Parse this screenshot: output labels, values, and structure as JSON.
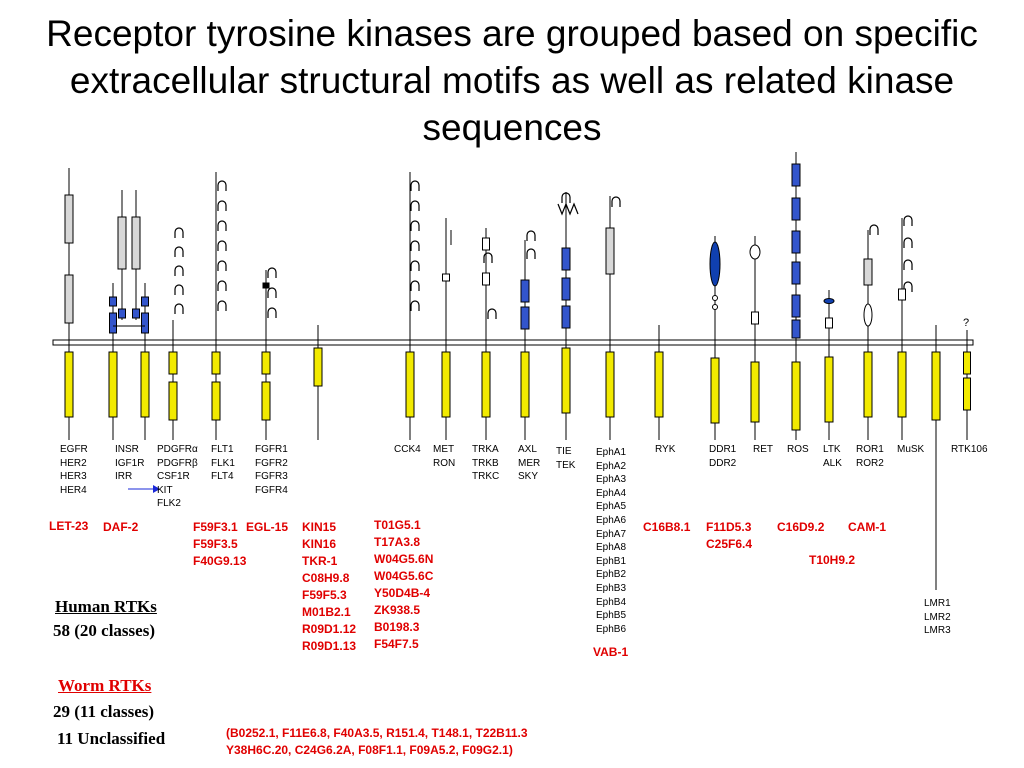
{
  "title": "Receptor tyrosine kinases are grouped based on specific extracellular structural motifs as well as related kinase sequences",
  "unknown_mark": "?",
  "human_labels": [
    {
      "id": "egfr",
      "text": "EGFR\nHER2\nHER3\nHER4"
    },
    {
      "id": "insr",
      "text": "INSR\nIGF1R\nIRR"
    },
    {
      "id": "pdgfr",
      "text": "PDGFRα\nPDGFRβ\nCSF1R\nKIT\nFLK2"
    },
    {
      "id": "flt",
      "text": "FLT1\nFLK1\nFLT4"
    },
    {
      "id": "fgfr",
      "text": "FGFR1\nFGFR2\nFGFR3\nFGFR4"
    },
    {
      "id": "cck4",
      "text": "CCK4"
    },
    {
      "id": "met",
      "text": "MET\nRON"
    },
    {
      "id": "trk",
      "text": "TRKA\nTRKB\nTRKC"
    },
    {
      "id": "axl",
      "text": "AXL\nMER\nSKY"
    },
    {
      "id": "tie",
      "text": "TIE\nTEK"
    },
    {
      "id": "eph",
      "text": "EphA1\nEphA2\nEphA3\nEphA4\nEphA5\nEphA6\nEphA7\nEphA8\nEphB1\nEphB2\nEphB3\nEphB4\nEphB5\nEphB6"
    },
    {
      "id": "ryk",
      "text": "RYK"
    },
    {
      "id": "ddr",
      "text": "DDR1\nDDR2"
    },
    {
      "id": "ret",
      "text": "RET"
    },
    {
      "id": "ros",
      "text": "ROS"
    },
    {
      "id": "ltk",
      "text": "LTK\nALK"
    },
    {
      "id": "ror",
      "text": "ROR1\nROR2"
    },
    {
      "id": "musk",
      "text": "MuSK"
    },
    {
      "id": "rtk106",
      "text": "RTK106"
    },
    {
      "id": "lmr",
      "text": "LMR1\nLMR2\nLMR3"
    }
  ],
  "worm_labels": [
    {
      "id": "let23",
      "text": "LET-23"
    },
    {
      "id": "daf2",
      "text": "DAF-2"
    },
    {
      "id": "f59f31",
      "text": "F59F3.1\nF59F3.5\nF40G9.13"
    },
    {
      "id": "egl15",
      "text": "EGL-15"
    },
    {
      "id": "kin15",
      "text": "KIN15\nKIN16\nTKR-1\nC08H9.8\nF59F5.3\nM01B2.1\nR09D1.12\nR09D1.13"
    },
    {
      "id": "t01g51",
      "text": "T01G5.1\nT17A3.8\nW04G5.6N\nW04G5.6C\nY50D4B-4\nZK938.5\nB0198.3\nF54F7.5"
    },
    {
      "id": "vab1",
      "text": "VAB-1"
    },
    {
      "id": "c16b81",
      "text": "C16B8.1"
    },
    {
      "id": "f11d53",
      "text": "F11D5.3\nC25F6.4"
    },
    {
      "id": "c16d92",
      "text": "C16D9.2"
    },
    {
      "id": "cam1",
      "text": "CAM-1"
    },
    {
      "id": "t10h92",
      "text": "T10H9.2"
    }
  ],
  "summary": {
    "human_title": "Human RTKs",
    "human_count": "58 (20 classes)",
    "worm_title": "Worm RTKs",
    "worm_count": "29 (11 classes)",
    "unclassified": "11 Unclassified"
  },
  "unclassified_list": {
    "line1": "(B0252.1, F11E6.8, F40A3.5, R151.4, T148.1, T22B11.3",
    "line2": "Y38H6C.20, C24G6.2A, F08F1.1, F09A5.2, F09G2.1)"
  },
  "colors": {
    "kinase_domain": "#f2ea00",
    "fibronectin_domain": "#3355cc",
    "cysteine_rich_domain": "#d8d8d8",
    "discoidin_domain": "#1040b0",
    "worm_text": "#e00000",
    "arrow": "#1a28d8"
  }
}
